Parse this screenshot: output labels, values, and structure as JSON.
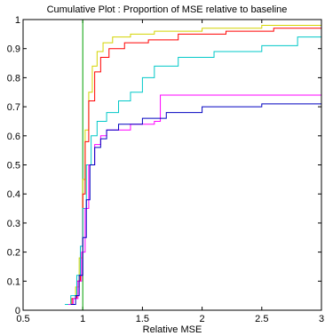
{
  "chart_data": {
    "type": "line",
    "title": "Cumulative Plot : Proportion of MSE relative to baseline",
    "xlabel": "Relative MSE",
    "ylabel": "",
    "xlim": [
      0.5,
      3
    ],
    "ylim": [
      0,
      1
    ],
    "xticks": [
      0.5,
      1,
      1.5,
      2,
      2.5,
      3
    ],
    "xtick_labels": [
      "0.5",
      "1",
      "1.5",
      "2",
      "2.5",
      "3"
    ],
    "yticks": [
      0,
      0.1,
      0.2,
      0.3,
      0.4,
      0.5,
      0.6,
      0.7,
      0.8,
      0.9,
      1
    ],
    "ytick_labels": [
      "0",
      "0.1",
      "0.2",
      "0.3",
      "0.4",
      "0.5",
      "0.6",
      "0.7",
      "0.8",
      "0.9",
      "1"
    ],
    "grid": false,
    "series": [
      {
        "color": "#00a000",
        "points": [
          [
            0.5,
            0
          ],
          [
            1.0,
            0
          ],
          [
            1.0,
            1.0
          ],
          [
            3.0,
            1.0
          ]
        ]
      },
      {
        "color": "#d4d400",
        "points": [
          [
            0.86,
            0.02
          ],
          [
            0.9,
            0.04
          ],
          [
            0.94,
            0.08
          ],
          [
            0.97,
            0.18
          ],
          [
            1.0,
            0.45
          ],
          [
            1.02,
            0.62
          ],
          [
            1.05,
            0.75
          ],
          [
            1.08,
            0.84
          ],
          [
            1.12,
            0.89
          ],
          [
            1.17,
            0.92
          ],
          [
            1.25,
            0.94
          ],
          [
            1.4,
            0.95
          ],
          [
            1.6,
            0.96
          ],
          [
            2.0,
            0.97
          ],
          [
            2.5,
            0.98
          ],
          [
            3.0,
            0.99
          ]
        ]
      },
      {
        "color": "#ff0000",
        "points": [
          [
            0.87,
            0.02
          ],
          [
            0.91,
            0.04
          ],
          [
            0.95,
            0.1
          ],
          [
            0.98,
            0.22
          ],
          [
            1.0,
            0.4
          ],
          [
            1.02,
            0.58
          ],
          [
            1.05,
            0.72
          ],
          [
            1.1,
            0.82
          ],
          [
            1.15,
            0.87
          ],
          [
            1.22,
            0.9
          ],
          [
            1.35,
            0.92
          ],
          [
            1.55,
            0.93
          ],
          [
            1.8,
            0.95
          ],
          [
            2.2,
            0.96
          ],
          [
            2.6,
            0.97
          ],
          [
            3.0,
            0.975
          ]
        ]
      },
      {
        "color": "#00c8c8",
        "points": [
          [
            0.85,
            0.02
          ],
          [
            0.9,
            0.05
          ],
          [
            0.95,
            0.12
          ],
          [
            0.98,
            0.22
          ],
          [
            1.0,
            0.35
          ],
          [
            1.03,
            0.5
          ],
          [
            1.07,
            0.6
          ],
          [
            1.12,
            0.65
          ],
          [
            1.2,
            0.68
          ],
          [
            1.3,
            0.72
          ],
          [
            1.4,
            0.75
          ],
          [
            1.5,
            0.8
          ],
          [
            1.6,
            0.84
          ],
          [
            1.8,
            0.87
          ],
          [
            2.1,
            0.89
          ],
          [
            2.5,
            0.91
          ],
          [
            2.8,
            0.94
          ],
          [
            3.0,
            0.95
          ]
        ]
      },
      {
        "color": "#ff00ff",
        "points": [
          [
            0.88,
            0.02
          ],
          [
            0.92,
            0.04
          ],
          [
            0.96,
            0.1
          ],
          [
            0.99,
            0.2
          ],
          [
            1.02,
            0.35
          ],
          [
            1.05,
            0.5
          ],
          [
            1.1,
            0.57
          ],
          [
            1.15,
            0.6
          ],
          [
            1.2,
            0.62
          ],
          [
            1.4,
            0.64
          ],
          [
            1.6,
            0.65
          ],
          [
            1.65,
            0.74
          ],
          [
            2.0,
            0.74
          ],
          [
            3.0,
            0.74
          ]
        ]
      },
      {
        "color": "#0000c0",
        "points": [
          [
            0.9,
            0.02
          ],
          [
            0.94,
            0.05
          ],
          [
            0.97,
            0.12
          ],
          [
            1.0,
            0.25
          ],
          [
            1.03,
            0.38
          ],
          [
            1.06,
            0.5
          ],
          [
            1.1,
            0.56
          ],
          [
            1.15,
            0.59
          ],
          [
            1.2,
            0.62
          ],
          [
            1.3,
            0.64
          ],
          [
            1.5,
            0.66
          ],
          [
            1.7,
            0.68
          ],
          [
            2.0,
            0.7
          ],
          [
            2.5,
            0.71
          ],
          [
            3.0,
            0.715
          ]
        ]
      }
    ]
  }
}
